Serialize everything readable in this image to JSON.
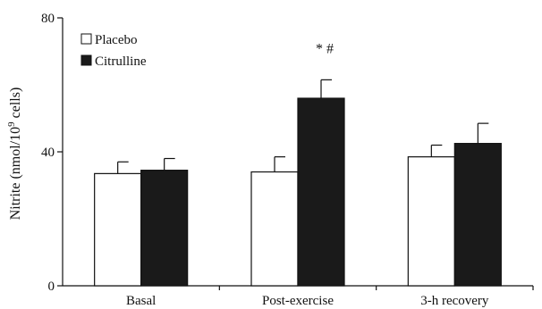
{
  "chart_data": {
    "type": "bar",
    "categories": [
      "Basal",
      "Post-exercise",
      "3-h recovery"
    ],
    "series": [
      {
        "name": "Placebo",
        "values": [
          33.5,
          34,
          38.5
        ],
        "errors": [
          3.5,
          4.5,
          3.5
        ],
        "color": "#ffffff"
      },
      {
        "name": "Citrulline",
        "values": [
          34.5,
          56,
          42.5
        ],
        "errors": [
          3.5,
          5.5,
          6
        ],
        "color": "#1a1a1a"
      }
    ],
    "ylim": [
      0,
      80
    ],
    "yticks": [
      0,
      40,
      80
    ],
    "ylabel_prefix": "Nitrite (nmol/10",
    "ylabel_sup": "9",
    "ylabel_suffix": " cells)",
    "annotations": [
      {
        "category_index": 1,
        "series_index": 1,
        "text": "* #"
      }
    ],
    "legend_position": "top-left",
    "grid": false
  }
}
